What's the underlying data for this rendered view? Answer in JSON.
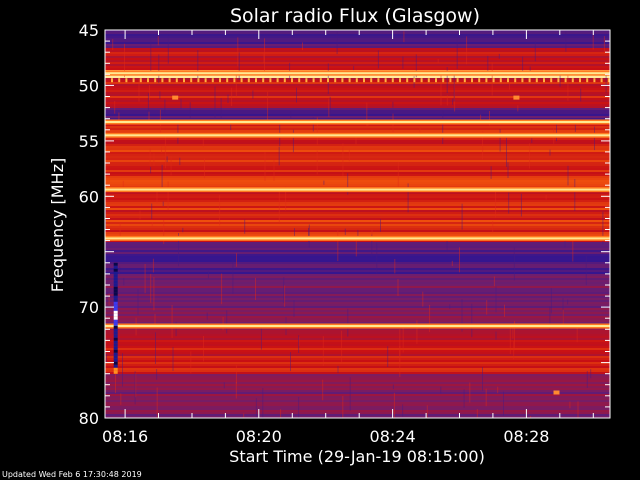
{
  "chart_data": {
    "type": "heatmap",
    "title": "Solar radio Flux (Glasgow)",
    "xlabel": "Start Time (29-Jan-19 08:15:00)",
    "ylabel": "Frequency [MHz]",
    "x_unit": "minutes after 08:15:00",
    "xlim": [
      0.4,
      15.5
    ],
    "ylim": [
      45,
      80
    ],
    "y_axis_inverted": true,
    "x_ticks": [
      {
        "value": 1,
        "label": "08:16"
      },
      {
        "value": 5,
        "label": "08:20"
      },
      {
        "value": 9,
        "label": "08:24"
      },
      {
        "value": 13,
        "label": "08:28"
      }
    ],
    "y_ticks": [
      {
        "value": 45,
        "label": "45"
      },
      {
        "value": 50,
        "label": "50"
      },
      {
        "value": 55,
        "label": "55"
      },
      {
        "value": 60,
        "label": "60"
      },
      {
        "value": 70,
        "label": "70"
      },
      {
        "value": 80,
        "label": "80"
      }
    ],
    "bands": [
      {
        "from": 45,
        "to": 46.5,
        "level": "low"
      },
      {
        "from": 46.5,
        "to": 48.5,
        "level": "mid"
      },
      {
        "from": 48.5,
        "to": 49.3,
        "level": "high"
      },
      {
        "from": 49.3,
        "to": 52,
        "level": "mid"
      },
      {
        "from": 52,
        "to": 53,
        "level": "low"
      },
      {
        "from": 53,
        "to": 57,
        "level": "mid-high"
      },
      {
        "from": 57,
        "to": 60,
        "level": "mid-high"
      },
      {
        "from": 60,
        "to": 64,
        "level": "mid-high"
      },
      {
        "from": 64,
        "to": 67,
        "level": "low"
      },
      {
        "from": 67,
        "to": 72,
        "level": "low-mid"
      },
      {
        "from": 72,
        "to": 76,
        "level": "mid"
      },
      {
        "from": 76,
        "to": 80,
        "level": "low-mid"
      }
    ],
    "bright_lines_mhz": [
      48.9,
      53.3,
      54.5,
      59.4,
      63.8,
      71.7
    ],
    "colors": {
      "low": "#3a2a9a",
      "mid": "#c4101a",
      "high": "#ffe060",
      "bg": "#000000"
    }
  },
  "footer": {
    "updated": "Updated Wed Feb  6 17:30:48 2019"
  }
}
